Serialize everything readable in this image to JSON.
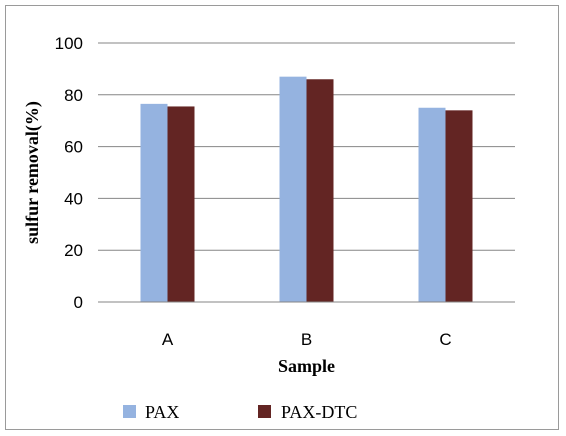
{
  "chart_data": {
    "type": "bar",
    "title": "",
    "xlabel": "Sample",
    "ylabel": "sulfur removal(%)",
    "categories": [
      "A",
      "B",
      "C"
    ],
    "series": [
      {
        "name": "PAX",
        "values": [
          76.5,
          87,
          75
        ],
        "color": "#95b3e0"
      },
      {
        "name": "PAX-DTC",
        "values": [
          75.5,
          86,
          74
        ],
        "color": "#632523"
      }
    ],
    "ylim": [
      0,
      100
    ],
    "yticks": [
      "0",
      "20",
      "40",
      "60",
      "80",
      "100"
    ],
    "grid": true,
    "legend_position": "bottom"
  }
}
